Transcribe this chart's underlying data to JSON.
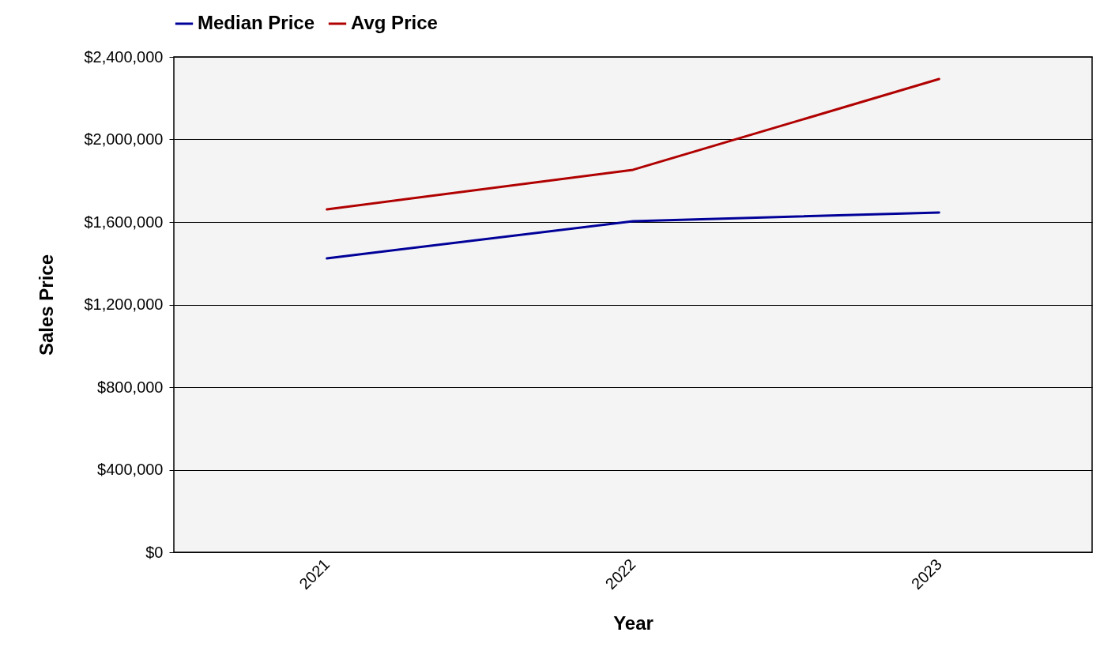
{
  "chart_data": {
    "type": "line",
    "xlabel": "Year",
    "ylabel": "Sales Price",
    "categories": [
      "2021",
      "2022",
      "2023"
    ],
    "series": [
      {
        "name": "Median Price",
        "color": "#000099",
        "values": [
          1424000,
          1604000,
          1646000
        ]
      },
      {
        "name": "Avg Price",
        "color": "#b00000",
        "values": [
          1661000,
          1853000,
          2293000
        ]
      }
    ],
    "ylim": [
      0,
      2400000
    ],
    "yticks": [
      {
        "value": 0,
        "label": "$0"
      },
      {
        "value": 400000,
        "label": "$400,000"
      },
      {
        "value": 800000,
        "label": "$800,000"
      },
      {
        "value": 1200000,
        "label": "$1,200,000"
      },
      {
        "value": 1600000,
        "label": "$1,600,000"
      },
      {
        "value": 2000000,
        "label": "$2,000,000"
      },
      {
        "value": 2400000,
        "label": "$2,400,000"
      }
    ],
    "grid": "y",
    "legend": "top",
    "marker": "none",
    "line_style": "solid"
  }
}
